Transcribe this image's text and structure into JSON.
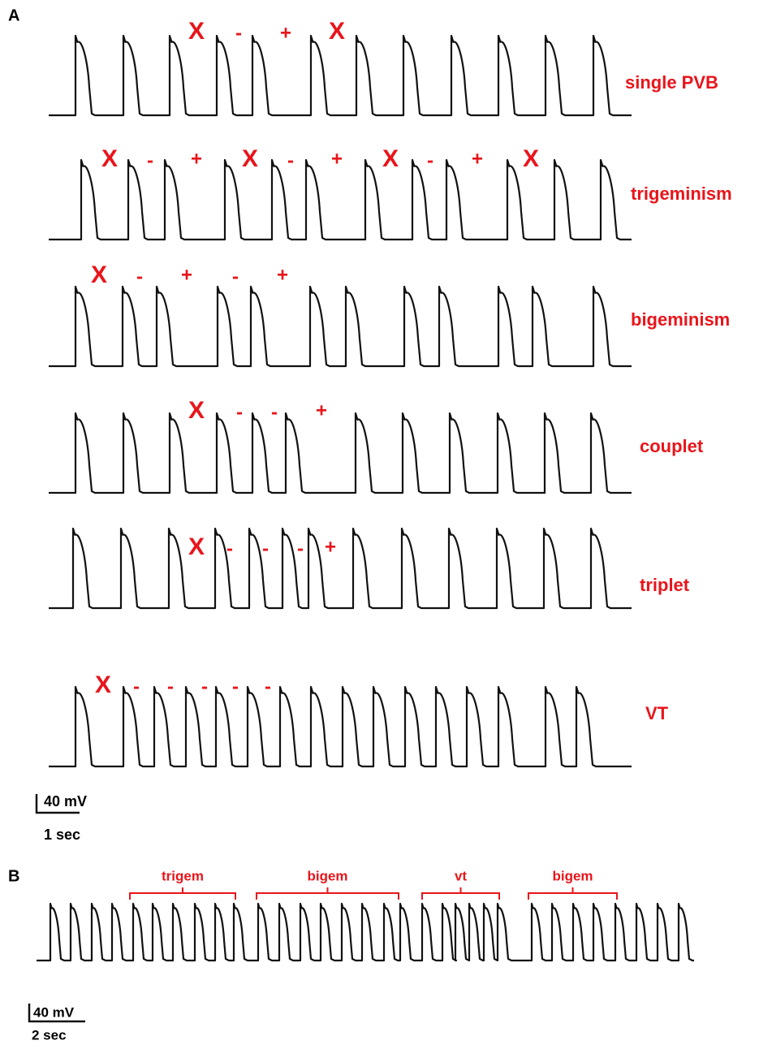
{
  "panel_a": {
    "label": "A",
    "rows": [
      {
        "label": "single PVB",
        "markers": [
          "X",
          "-",
          "+",
          "X"
        ]
      },
      {
        "label": "trigeminism",
        "markers": [
          "X",
          "-",
          "+",
          "X",
          "-",
          "+",
          "X",
          "-",
          "+",
          "X"
        ]
      },
      {
        "label": "bigeminism",
        "markers": [
          "X",
          "-",
          "+",
          "-",
          "+"
        ]
      },
      {
        "label": "couplet",
        "markers": [
          "X",
          "-",
          "-",
          "+"
        ]
      },
      {
        "label": "triplet",
        "markers": [
          "X",
          "-",
          "-",
          "-",
          "+"
        ]
      },
      {
        "label": "VT",
        "markers": [
          "X",
          "-",
          "-",
          "-",
          "-",
          "-"
        ]
      }
    ],
    "scale": {
      "voltage": "40 mV",
      "time": "1 sec"
    }
  },
  "panel_b": {
    "label": "B",
    "groups": [
      "trigem",
      "bigem",
      "vt",
      "bigem"
    ],
    "scale": {
      "voltage": "40 mV",
      "time": "2 sec"
    }
  }
}
